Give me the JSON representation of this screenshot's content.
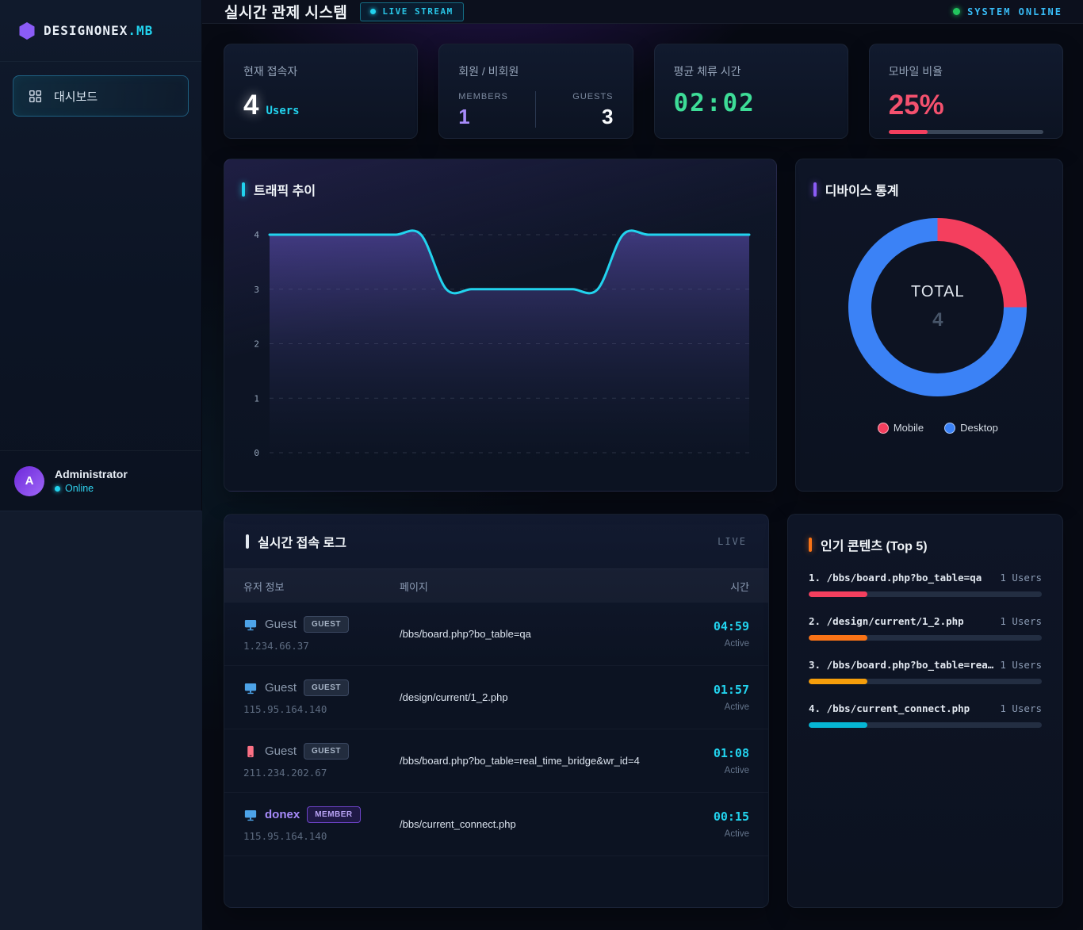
{
  "brand": {
    "name": "DESIGNONEX",
    "suffix": ".MB"
  },
  "sidebar": {
    "menu": [
      {
        "label": "대시보드"
      }
    ],
    "user": {
      "initial": "A",
      "name": "Administrator",
      "status": "Online"
    }
  },
  "header": {
    "title": "실시간 관제 시스템",
    "live_badge": "LIVE STREAM",
    "system_status": "SYSTEM ONLINE",
    "status_color": "#22c55e"
  },
  "stats": {
    "current": {
      "label": "현재 접속자",
      "value": "4",
      "unit": "Users"
    },
    "members": {
      "label": "회원 / 비회원",
      "members_label": "MEMBERS",
      "members_value": "1",
      "guests_label": "GUESTS",
      "guests_value": "3"
    },
    "duration": {
      "label": "평균 체류 시간",
      "value": "02:02"
    },
    "mobile": {
      "label": "모바일 비율",
      "value": "25%",
      "pct": 25,
      "color": "#f43f5e"
    }
  },
  "chart_data": [
    {
      "type": "line",
      "title": "트래픽 추이",
      "x": [
        0,
        1,
        2,
        3,
        4,
        5,
        6,
        7,
        8,
        9,
        10,
        11,
        12,
        13,
        14,
        15,
        16,
        17,
        18,
        19
      ],
      "values": [
        4,
        4,
        4,
        4,
        4,
        4,
        4,
        3,
        3,
        3,
        3,
        3,
        3,
        3,
        4,
        4,
        4,
        4,
        4,
        4
      ],
      "ylim": [
        0,
        4
      ],
      "yticks": [
        0,
        1,
        2,
        3,
        4
      ],
      "grid": true,
      "legend": "none",
      "line_color": "#22d3ee",
      "fill_top": "rgba(109,91,208,0.50)",
      "fill_bottom": "rgba(30,42,74,0.03)"
    },
    {
      "type": "pie",
      "title": "디바이스 통계",
      "center_label": "TOTAL",
      "center_value": "4",
      "slices": [
        {
          "label": "Mobile",
          "value": 1,
          "color": "#f43f5e"
        },
        {
          "label": "Desktop",
          "value": 3,
          "color": "#3b82f6"
        }
      ],
      "legend_position": "bottom"
    },
    {
      "type": "bar",
      "title": "인기 콘텐츠 (Top 5)",
      "categories": [
        "/bbs/board.php?bo_table=qa",
        "/design/current/1_2.php",
        "/bbs/board.php?bo_table=rea…",
        "/bbs/current_connect.php"
      ],
      "values": [
        1,
        1,
        1,
        1
      ],
      "unit": "Users",
      "bar_pct": 25
    }
  ],
  "log": {
    "title": "실시간 접속 로그",
    "live_label": "LIVE",
    "columns": {
      "user": "유저 정보",
      "page": "페이지",
      "time": "시간"
    },
    "rows": [
      {
        "device": "desktop",
        "name": "Guest",
        "badge": "GUEST",
        "type": "guest",
        "ip": "1.234.66.37",
        "page": "/bbs/board.php?bo_table=qa",
        "time": "04:59",
        "status": "Active"
      },
      {
        "device": "desktop",
        "name": "Guest",
        "badge": "GUEST",
        "type": "guest",
        "ip": "115.95.164.140",
        "page": "/design/current/1_2.php",
        "time": "01:57",
        "status": "Active"
      },
      {
        "device": "mobile",
        "name": "Guest",
        "badge": "GUEST",
        "type": "guest",
        "ip": "211.234.202.67",
        "page": "/bbs/board.php?bo_table=real_time_bridge&wr_id=4",
        "time": "01:08",
        "status": "Active"
      },
      {
        "device": "desktop",
        "name": "donex",
        "badge": "MEMBER",
        "type": "member",
        "ip": "115.95.164.140",
        "page": "/bbs/current_connect.php",
        "time": "00:15",
        "status": "Active"
      }
    ]
  },
  "top5": {
    "title": "인기 콘텐츠 (Top 5)",
    "items": [
      {
        "rank": "1.",
        "path": "/bbs/board.php?bo_table=qa",
        "users": "1 Users",
        "pct": 25,
        "color": "#f43f5e"
      },
      {
        "rank": "2.",
        "path": "/design/current/1_2.php",
        "users": "1 Users",
        "pct": 25,
        "color": "#f97316"
      },
      {
        "rank": "3.",
        "path": "/bbs/board.php?bo_table=rea…",
        "users": "1 Users",
        "pct": 25,
        "color": "#f59e0b"
      },
      {
        "rank": "4.",
        "path": "/bbs/current_connect.php",
        "users": "1 Users",
        "pct": 25,
        "color": "#06b6d4"
      }
    ]
  }
}
